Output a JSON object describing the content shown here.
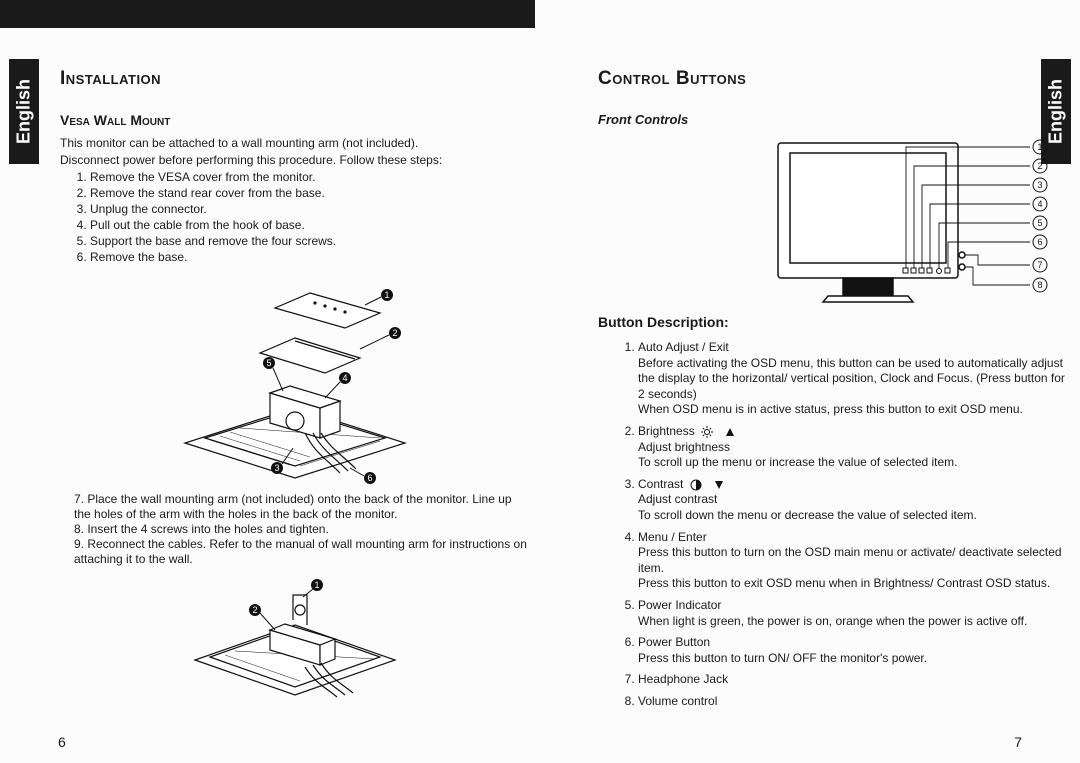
{
  "langTab": "English",
  "left": {
    "h1": "Installation",
    "h2": "Vesa Wall Mount",
    "intro1": "This monitor can be attached to a wall mounting arm (not included).",
    "intro2": "Disconnect power before performing this procedure. Follow these steps:",
    "steps1": [
      "Remove the VESA cover from the monitor.",
      "Remove the stand rear cover from the base.",
      "Unplug the connector.",
      "Pull out the cable from the hook of base.",
      "Support the base and remove the four screws.",
      "Remove the base."
    ],
    "step7": "7.  Place the wall mounting arm (not included) onto the back of the monitor. Line up the holes of the arm with the holes in the back of the monitor.",
    "step8": "8.  Insert the 4 screws into the holes and tighten.",
    "step9": "9.  Reconnect the cables. Refer to the manual of wall mounting arm for instructions on attaching it to the wall.",
    "pagenum": "6"
  },
  "right": {
    "h1": "Control Buttons",
    "front": "Front Controls",
    "btnDesc": "Button Description:",
    "items": [
      {
        "t": "Auto Adjust / Exit",
        "b": [
          "Before activating the OSD menu, this button can be used to automatically adjust the display to the horizontal/ vertical position, Clock and Focus. (Press button for 2 seconds)",
          "When OSD menu is in active status, press this button to exit OSD menu."
        ]
      },
      {
        "t": "Brightness",
        "icon": "bright",
        "b": [
          "Adjust brightness",
          "To scroll up the menu or increase the value of selected item."
        ]
      },
      {
        "t": "Contrast",
        "icon": "contrast",
        "b": [
          "Adjust contrast",
          "To scroll down the menu or decrease the value of selected item."
        ]
      },
      {
        "t": "Menu / Enter",
        "b": [
          "Press this button to turn on the OSD main menu or activate/ deactivate selected item.",
          "Press this button to exit OSD menu when in Brightness/ Contrast OSD status."
        ]
      },
      {
        "t": "Power Indicator",
        "marker": "5.:",
        "b": [
          "When light is green, the power is on, orange when the power is active off."
        ]
      },
      {
        "t": "Power Button",
        "b": [
          "Press this button to turn ON/ OFF the monitor's power."
        ]
      },
      {
        "t": "Headphone Jack",
        "b": []
      },
      {
        "t": "Volume control",
        "b": []
      }
    ],
    "pagenum": "7"
  }
}
